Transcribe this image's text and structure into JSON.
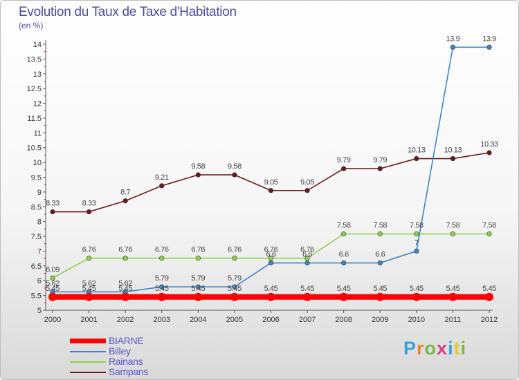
{
  "chart_data": {
    "type": "line",
    "title": "Evolution du Taux de Taxe d'Habitation",
    "subtitle": "(en %)",
    "x": [
      "2000",
      "2001",
      "2002",
      "2003",
      "2004",
      "2005",
      "2006",
      "2007",
      "2008",
      "2009",
      "2010",
      "2011",
      "2012"
    ],
    "yticks": [
      "5",
      "5.5",
      "6",
      "6.5",
      "7",
      "7.5",
      "8",
      "8.5",
      "9",
      "9.5",
      "10",
      "10.5",
      "11",
      "11.5",
      "12",
      "12.5",
      "13",
      "13.5",
      "14"
    ],
    "ylim": [
      5,
      14
    ],
    "grid": false,
    "legend_position": "bottom-left",
    "series": [
      {
        "name": "BIARNE",
        "color": "#ff0000",
        "values": [
          5.45,
          5.45,
          5.45,
          5.45,
          5.45,
          5.45,
          5.45,
          5.45,
          5.45,
          5.45,
          5.45,
          5.45,
          5.45
        ],
        "labels": [
          "5.45",
          "5.45",
          "5.45",
          "5.45",
          "5.45",
          "5.45",
          "5.45",
          "5.45",
          "5.45",
          "5.45",
          "5.45",
          "5.45",
          "5.45"
        ]
      },
      {
        "name": "Billey",
        "color": "#3d85c6",
        "values": [
          5.62,
          5.62,
          5.62,
          5.79,
          5.79,
          5.79,
          6.6,
          6.6,
          6.6,
          6.6,
          7,
          13.9,
          13.9
        ],
        "labels": [
          "5.62",
          "5.62",
          "5.62",
          "5.79",
          "5.79",
          "5.79",
          "6.6",
          "6.6",
          "6.6",
          "6.6",
          "7",
          "13.9",
          "13.9"
        ]
      },
      {
        "name": "Rainans",
        "color": "#8fd14f",
        "values": [
          6.09,
          6.76,
          6.76,
          6.76,
          6.76,
          6.76,
          6.76,
          6.76,
          7.58,
          7.58,
          7.58,
          7.58,
          7.58
        ],
        "labels": [
          "6.09",
          "6.76",
          "6.76",
          "6.76",
          "6.76",
          "6.76",
          "6.76",
          "6.76",
          "7.58",
          "7.58",
          "7.58",
          "7.58",
          "7.58"
        ]
      },
      {
        "name": "Sampans",
        "color": "#6b1a1a",
        "values": [
          8.33,
          8.33,
          8.7,
          9.21,
          9.58,
          9.58,
          9.05,
          9.05,
          9.79,
          9.79,
          10.13,
          10.13,
          10.33
        ],
        "labels": [
          "8.33",
          "8.33",
          "8.7",
          "9.21",
          "9.58",
          "9.58",
          "9.05",
          "9.05",
          "9.79",
          "9.79",
          "10.13",
          "10.13",
          "10.33"
        ]
      }
    ]
  },
  "logo": {
    "p": "P",
    "r": "r",
    "o": "o",
    "x": "x",
    "i": "i",
    "t": "t",
    "i2": "i"
  }
}
